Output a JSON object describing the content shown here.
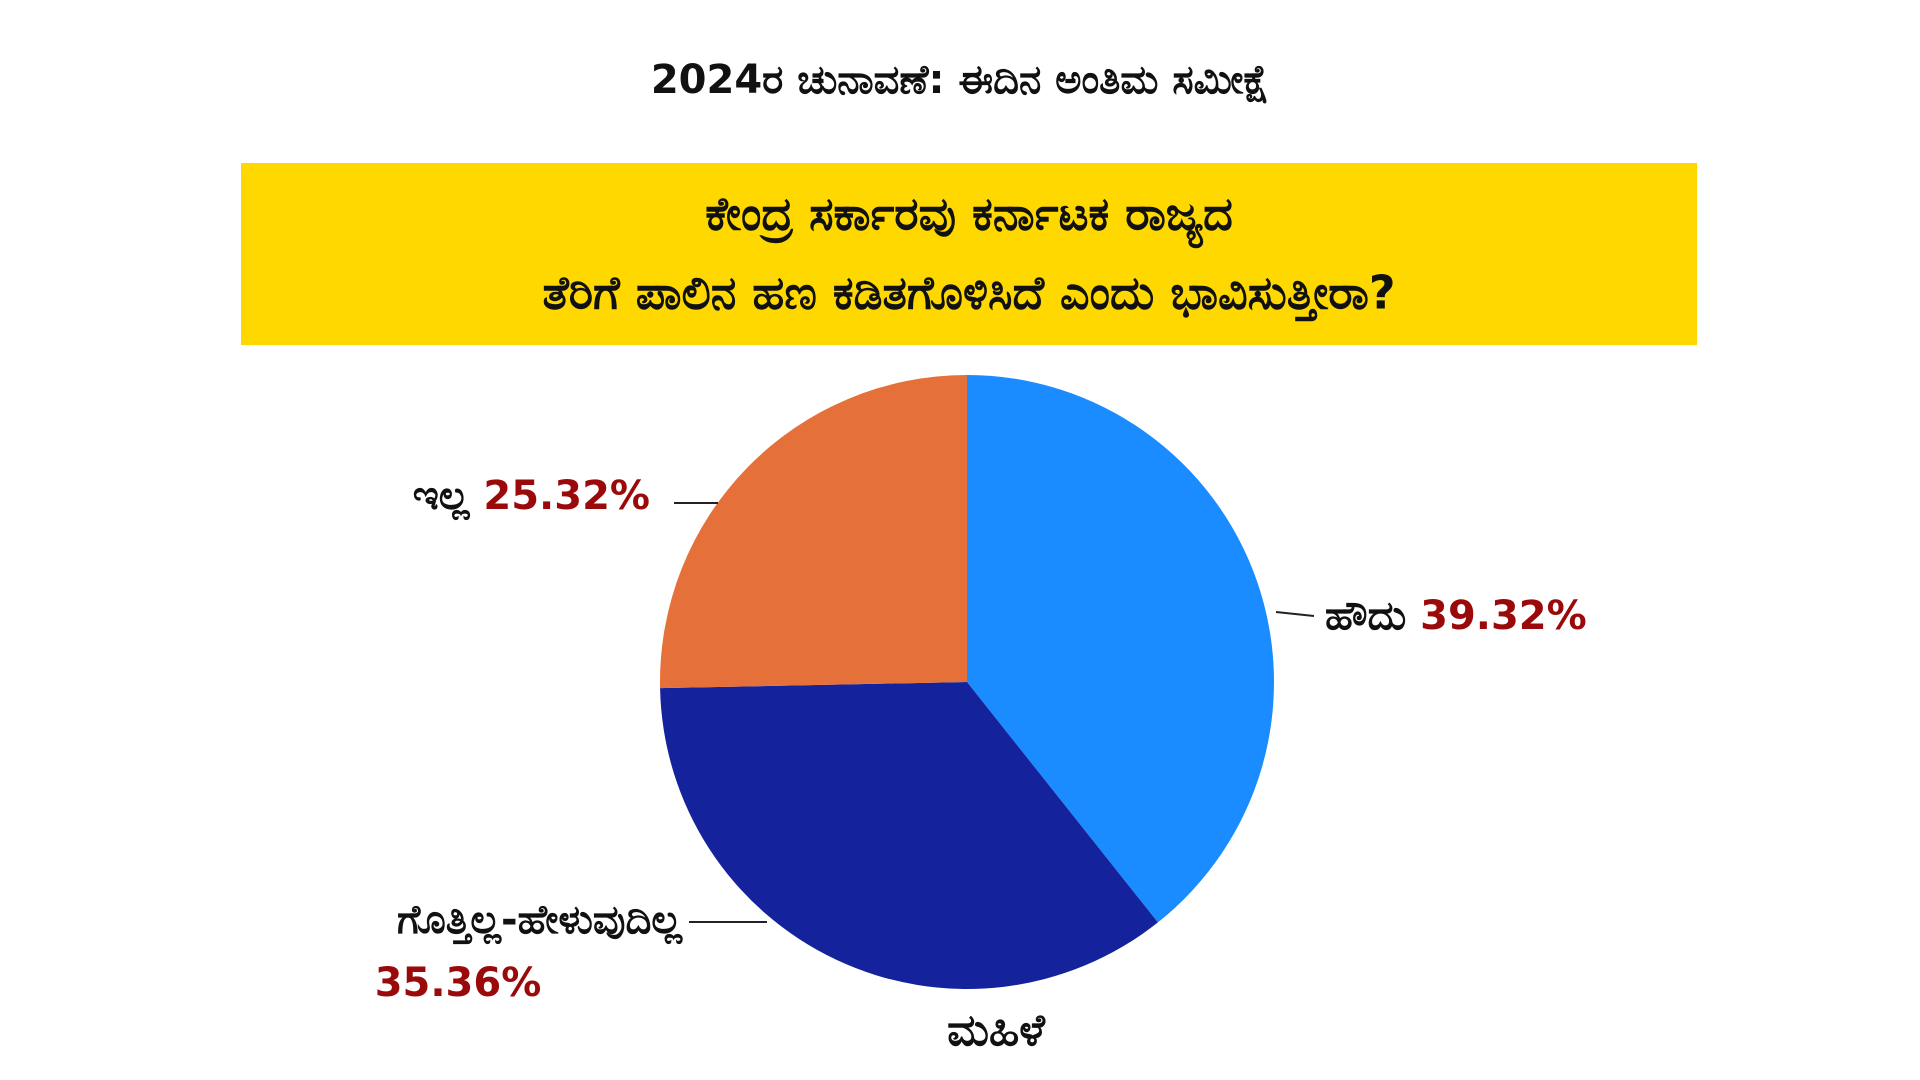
{
  "chart_data": {
    "type": "pie",
    "title": "2024ರ ಚುನಾವಣೆ: ಈದಿನ ಅಂತಿಮ ಸಮೀಕ್ಷೆ",
    "subtitle": [
      "ಕೇಂದ್ರ ಸರ್ಕಾರವು ಕರ್ನಾಟಕ ರಾಜ್ಯದ",
      "ತೆರಿಗೆ ಪಾಲಿನ ಹಣ ಕಡಿತಗೊಳಿಸಿದೆ ಎಂದು ಭಾವಿಸುತ್ತೀರಾ?"
    ],
    "categories": [
      "ಹೌದು",
      "ಗೊತ್ತಿಲ್ಲ-ಹೇಳುವುದಿಲ್ಲ",
      "ಇಲ್ಲ"
    ],
    "values": [
      39.32,
      35.36,
      25.32
    ],
    "value_labels": [
      "39.32%",
      "35.36%",
      "25.32%"
    ],
    "colors": [
      "#1a8cff",
      "#14239b",
      "#e5703a"
    ],
    "footer": "ಮಹಿಳೆ"
  }
}
